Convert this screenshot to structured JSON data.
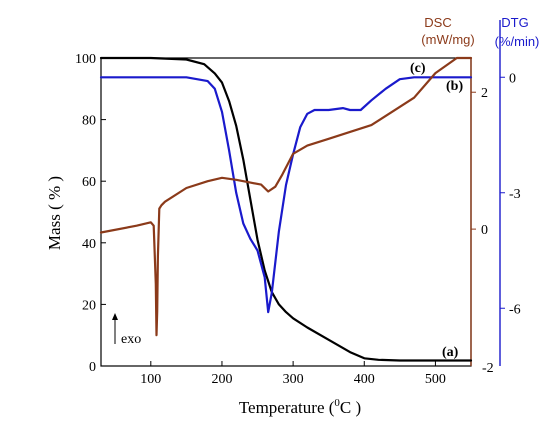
{
  "chart_data": {
    "type": "line",
    "xlabel": "Temperature (",
    "xlabel_unit_sup": "0",
    "xlabel_unit": "C )",
    "ylabel": "Mass ( % )",
    "xlim": [
      30,
      550
    ],
    "xticks": [
      100,
      200,
      300,
      400,
      500
    ],
    "mass_axis": {
      "lim": [
        0,
        100
      ],
      "ticks": [
        0,
        20,
        40,
        60,
        80,
        100
      ]
    },
    "dsc_axis": {
      "title_line1": "DSC",
      "title_line2": "(mW/mg)",
      "lim": [
        -2,
        2.5
      ],
      "ticks": [
        {
          "value": 0,
          "label": "0"
        },
        {
          "value": 2,
          "label": "2"
        }
      ],
      "bottom_label": "-2",
      "color": "#8b3a1a"
    },
    "dtg_axis": {
      "title_line1": "DTG",
      "title_line2": "(%/min)",
      "lim": [
        -7.5,
        0.5
      ],
      "ticks": [
        {
          "value": 0,
          "label": "0"
        },
        {
          "value": -3,
          "label": "-3"
        },
        {
          "value": -6,
          "label": "-6"
        }
      ],
      "color": "#1a1acc"
    },
    "series": [
      {
        "label": "(a)",
        "axis": "mass",
        "color": "#000000",
        "x": [
          30,
          100,
          150,
          175,
          190,
          200,
          210,
          220,
          230,
          240,
          250,
          260,
          270,
          280,
          290,
          300,
          320,
          350,
          380,
          400,
          420,
          450,
          550
        ],
        "y": [
          100,
          100,
          99.5,
          98,
          95,
          92,
          86,
          78,
          67,
          54,
          41,
          31,
          24,
          20,
          17.5,
          15.5,
          12.5,
          8.5,
          4.5,
          2.5,
          2,
          1.8,
          1.8
        ]
      },
      {
        "label": "(b)",
        "axis": "dtg",
        "color": "#1a1acc",
        "x": [
          30,
          100,
          150,
          180,
          190,
          200,
          210,
          220,
          230,
          240,
          250,
          260,
          265,
          270,
          280,
          290,
          300,
          310,
          320,
          330,
          350,
          370,
          380,
          395,
          410,
          430,
          450,
          470,
          500,
          550
        ],
        "y": [
          0,
          0,
          0,
          -0.1,
          -0.3,
          -0.9,
          -1.9,
          -3.0,
          -3.8,
          -4.2,
          -4.5,
          -5.2,
          -6.1,
          -5.6,
          -4.0,
          -2.8,
          -2.0,
          -1.3,
          -0.95,
          -0.85,
          -0.85,
          -0.8,
          -0.85,
          -0.85,
          -0.6,
          -0.3,
          -0.05,
          0,
          0,
          0
        ]
      },
      {
        "label": "(c)",
        "axis": "dsc",
        "color": "#8b3a1a",
        "x": [
          30,
          80,
          100,
          104,
          107,
          108,
          109,
          110,
          112,
          115,
          120,
          150,
          180,
          200,
          220,
          240,
          255,
          265,
          275,
          285,
          300,
          320,
          350,
          380,
          410,
          440,
          470,
          500,
          530,
          550
        ],
        "y": [
          -0.05,
          0.05,
          0.1,
          0.05,
          -0.8,
          -1.55,
          -1.2,
          -0.4,
          0.3,
          0.35,
          0.4,
          0.6,
          0.7,
          0.75,
          0.72,
          0.68,
          0.65,
          0.55,
          0.62,
          0.8,
          1.1,
          1.22,
          1.32,
          1.42,
          1.52,
          1.72,
          1.92,
          2.28,
          2.65,
          2.9
        ]
      }
    ],
    "annotations": {
      "exo_label": "exo"
    }
  }
}
